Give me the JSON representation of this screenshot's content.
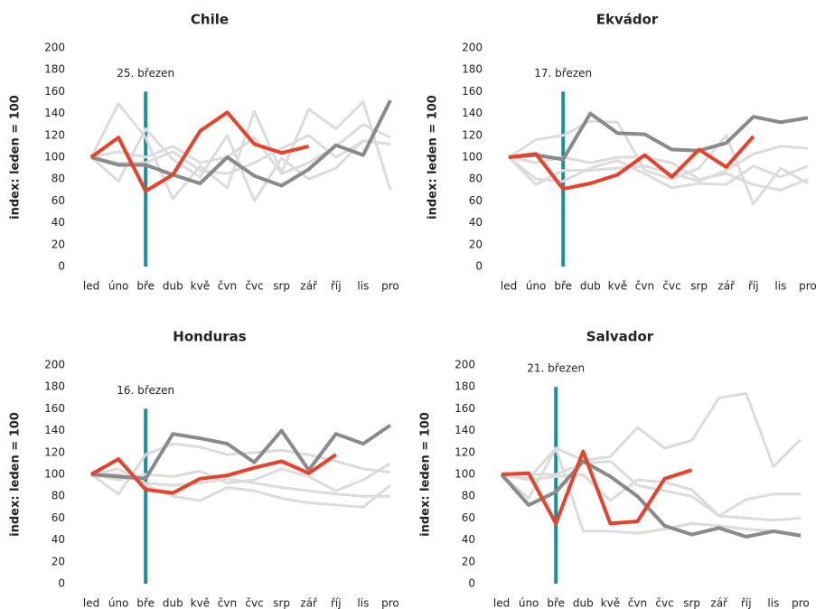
{
  "chart_data": [
    {
      "type": "line",
      "title": "Chile",
      "y_label": "index: leden = 100",
      "categories": [
        "led",
        "úno",
        "bře",
        "dub",
        "kvě",
        "čvn",
        "čvc",
        "srp",
        "zář",
        "říj",
        "lis",
        "pro"
      ],
      "ylim": [
        0,
        200
      ],
      "yticks": [
        0,
        20,
        40,
        60,
        80,
        100,
        120,
        140,
        160,
        180,
        200
      ],
      "annotation": {
        "text": "25. březen",
        "at": "bře",
        "top": 160,
        "color": "#1a8fa0"
      },
      "series": [
        {
          "color": "#dcdcdc",
          "values": [
            100,
            149,
            118,
            62,
            92,
            72,
            142,
            86,
            144,
            126,
            151,
            70
          ]
        },
        {
          "color": "#dcdcdc",
          "values": [
            100,
            78,
            126,
            98,
            82,
            120,
            60,
            99,
            80,
            90,
            115,
            112
          ]
        },
        {
          "color": "#dcdcdc",
          "values": [
            100,
            105,
            100,
            110,
            95,
            100,
            118,
            85,
            95,
            110,
            130,
            118
          ]
        },
        {
          "color": "#dcdcdc",
          "values": [
            100,
            95,
            95,
            105,
            88,
            85,
            95,
            108,
            120,
            100,
            115,
            112
          ]
        },
        {
          "color": "#8a8a8a",
          "values": [
            100,
            93,
            93,
            84,
            76,
            100,
            83,
            74,
            89,
            111,
            102,
            152
          ]
        },
        {
          "color": "#e8412c",
          "values": [
            100,
            118,
            69,
            84,
            124,
            141,
            112,
            104,
            110,
            null,
            null,
            null
          ]
        }
      ]
    },
    {
      "type": "line",
      "title": "Ekvádor",
      "y_label": "index: leden = 100",
      "categories": [
        "led",
        "úno",
        "bře",
        "dub",
        "kvě",
        "čvn",
        "čvc",
        "srp",
        "zář",
        "říj",
        "lis",
        "pro"
      ],
      "ylim": [
        0,
        200
      ],
      "yticks": [
        0,
        20,
        40,
        60,
        80,
        100,
        120,
        140,
        160,
        180,
        200
      ],
      "annotation": {
        "text": "17. březen",
        "at": "bře",
        "top": 160,
        "color": "#1a8fa0"
      },
      "series": [
        {
          "color": "#dcdcdc",
          "values": [
            100,
            116,
            120,
            133,
            132,
            88,
            80,
            90,
            120,
            57,
            90,
            76
          ]
        },
        {
          "color": "#dcdcdc",
          "values": [
            100,
            80,
            78,
            90,
            97,
            85,
            72,
            76,
            75,
            92,
            82,
            92
          ]
        },
        {
          "color": "#dcdcdc",
          "values": [
            100,
            75,
            88,
            88,
            90,
            92,
            85,
            78,
            88,
            103,
            110,
            108
          ]
        },
        {
          "color": "#dcdcdc",
          "values": [
            100,
            95,
            100,
            95,
            100,
            100,
            95,
            80,
            85,
            75,
            70,
            80
          ]
        },
        {
          "color": "#8a8a8a",
          "values": [
            100,
            102,
            98,
            140,
            122,
            121,
            107,
            106,
            113,
            137,
            132,
            136
          ]
        },
        {
          "color": "#e8412c",
          "values": [
            100,
            103,
            71,
            76,
            84,
            102,
            82,
            107,
            91,
            119,
            null,
            null
          ]
        }
      ]
    },
    {
      "type": "line",
      "title": "Honduras",
      "y_label": "index: leden = 100",
      "categories": [
        "led",
        "úno",
        "bře",
        "dub",
        "kvě",
        "čvn",
        "čvc",
        "srp",
        "zář",
        "říj",
        "lis",
        "pro"
      ],
      "ylim": [
        0,
        200
      ],
      "yticks": [
        0,
        20,
        40,
        60,
        80,
        100,
        120,
        140,
        160,
        180,
        200
      ],
      "annotation": {
        "text": "16. březen",
        "at": "bře",
        "top": 160,
        "color": "#1a8fa0"
      },
      "series": [
        {
          "color": "#dcdcdc",
          "values": [
            100,
            82,
            118,
            128,
            125,
            118,
            120,
            122,
            118,
            112,
            105,
            102
          ]
        },
        {
          "color": "#dcdcdc",
          "values": [
            100,
            95,
            100,
            98,
            103,
            92,
            95,
            105,
            98,
            85,
            95,
            110
          ]
        },
        {
          "color": "#dcdcdc",
          "values": [
            100,
            105,
            90,
            80,
            76,
            88,
            85,
            78,
            74,
            72,
            70,
            90
          ]
        },
        {
          "color": "#dcdcdc",
          "values": [
            100,
            100,
            92,
            90,
            92,
            96,
            92,
            88,
            85,
            82,
            80,
            80
          ]
        },
        {
          "color": "#8a8a8a",
          "values": [
            100,
            98,
            96,
            137,
            133,
            128,
            111,
            140,
            104,
            137,
            128,
            145
          ]
        },
        {
          "color": "#e8412c",
          "values": [
            100,
            114,
            86,
            83,
            96,
            99,
            106,
            112,
            101,
            118,
            null,
            null
          ]
        }
      ]
    },
    {
      "type": "line",
      "title": "Salvador",
      "y_label": "index: leden = 100",
      "categories": [
        "led",
        "úno",
        "bře",
        "dub",
        "kvě",
        "čvn",
        "čvc",
        "srp",
        "zář",
        "říj",
        "lis",
        "pro"
      ],
      "ylim": [
        0,
        200
      ],
      "yticks": [
        0,
        20,
        40,
        60,
        80,
        100,
        120,
        140,
        160,
        180,
        200
      ],
      "annotation": {
        "text": "21. březen",
        "at": "bře",
        "top": 180,
        "color": "#1a8fa0"
      },
      "series": [
        {
          "color": "#dcdcdc",
          "values": [
            100,
            78,
            124,
            113,
            116,
            143,
            124,
            131,
            170,
            174,
            107,
            132
          ]
        },
        {
          "color": "#dcdcdc",
          "values": [
            100,
            96,
            124,
            48,
            48,
            46,
            50,
            55,
            53,
            50,
            48,
            45
          ]
        },
        {
          "color": "#dcdcdc",
          "values": [
            100,
            95,
            98,
            100,
            76,
            95,
            93,
            86,
            62,
            77,
            82,
            82
          ]
        },
        {
          "color": "#dcdcdc",
          "values": [
            100,
            100,
            100,
            110,
            112,
            90,
            85,
            80,
            62,
            60,
            58,
            60
          ]
        },
        {
          "color": "#8a8a8a",
          "values": [
            100,
            72,
            84,
            112,
            98,
            80,
            53,
            45,
            51,
            43,
            48,
            44
          ]
        },
        {
          "color": "#e8412c",
          "values": [
            100,
            101,
            55,
            121,
            55,
            57,
            96,
            104,
            null,
            null,
            null,
            null
          ]
        }
      ]
    }
  ]
}
